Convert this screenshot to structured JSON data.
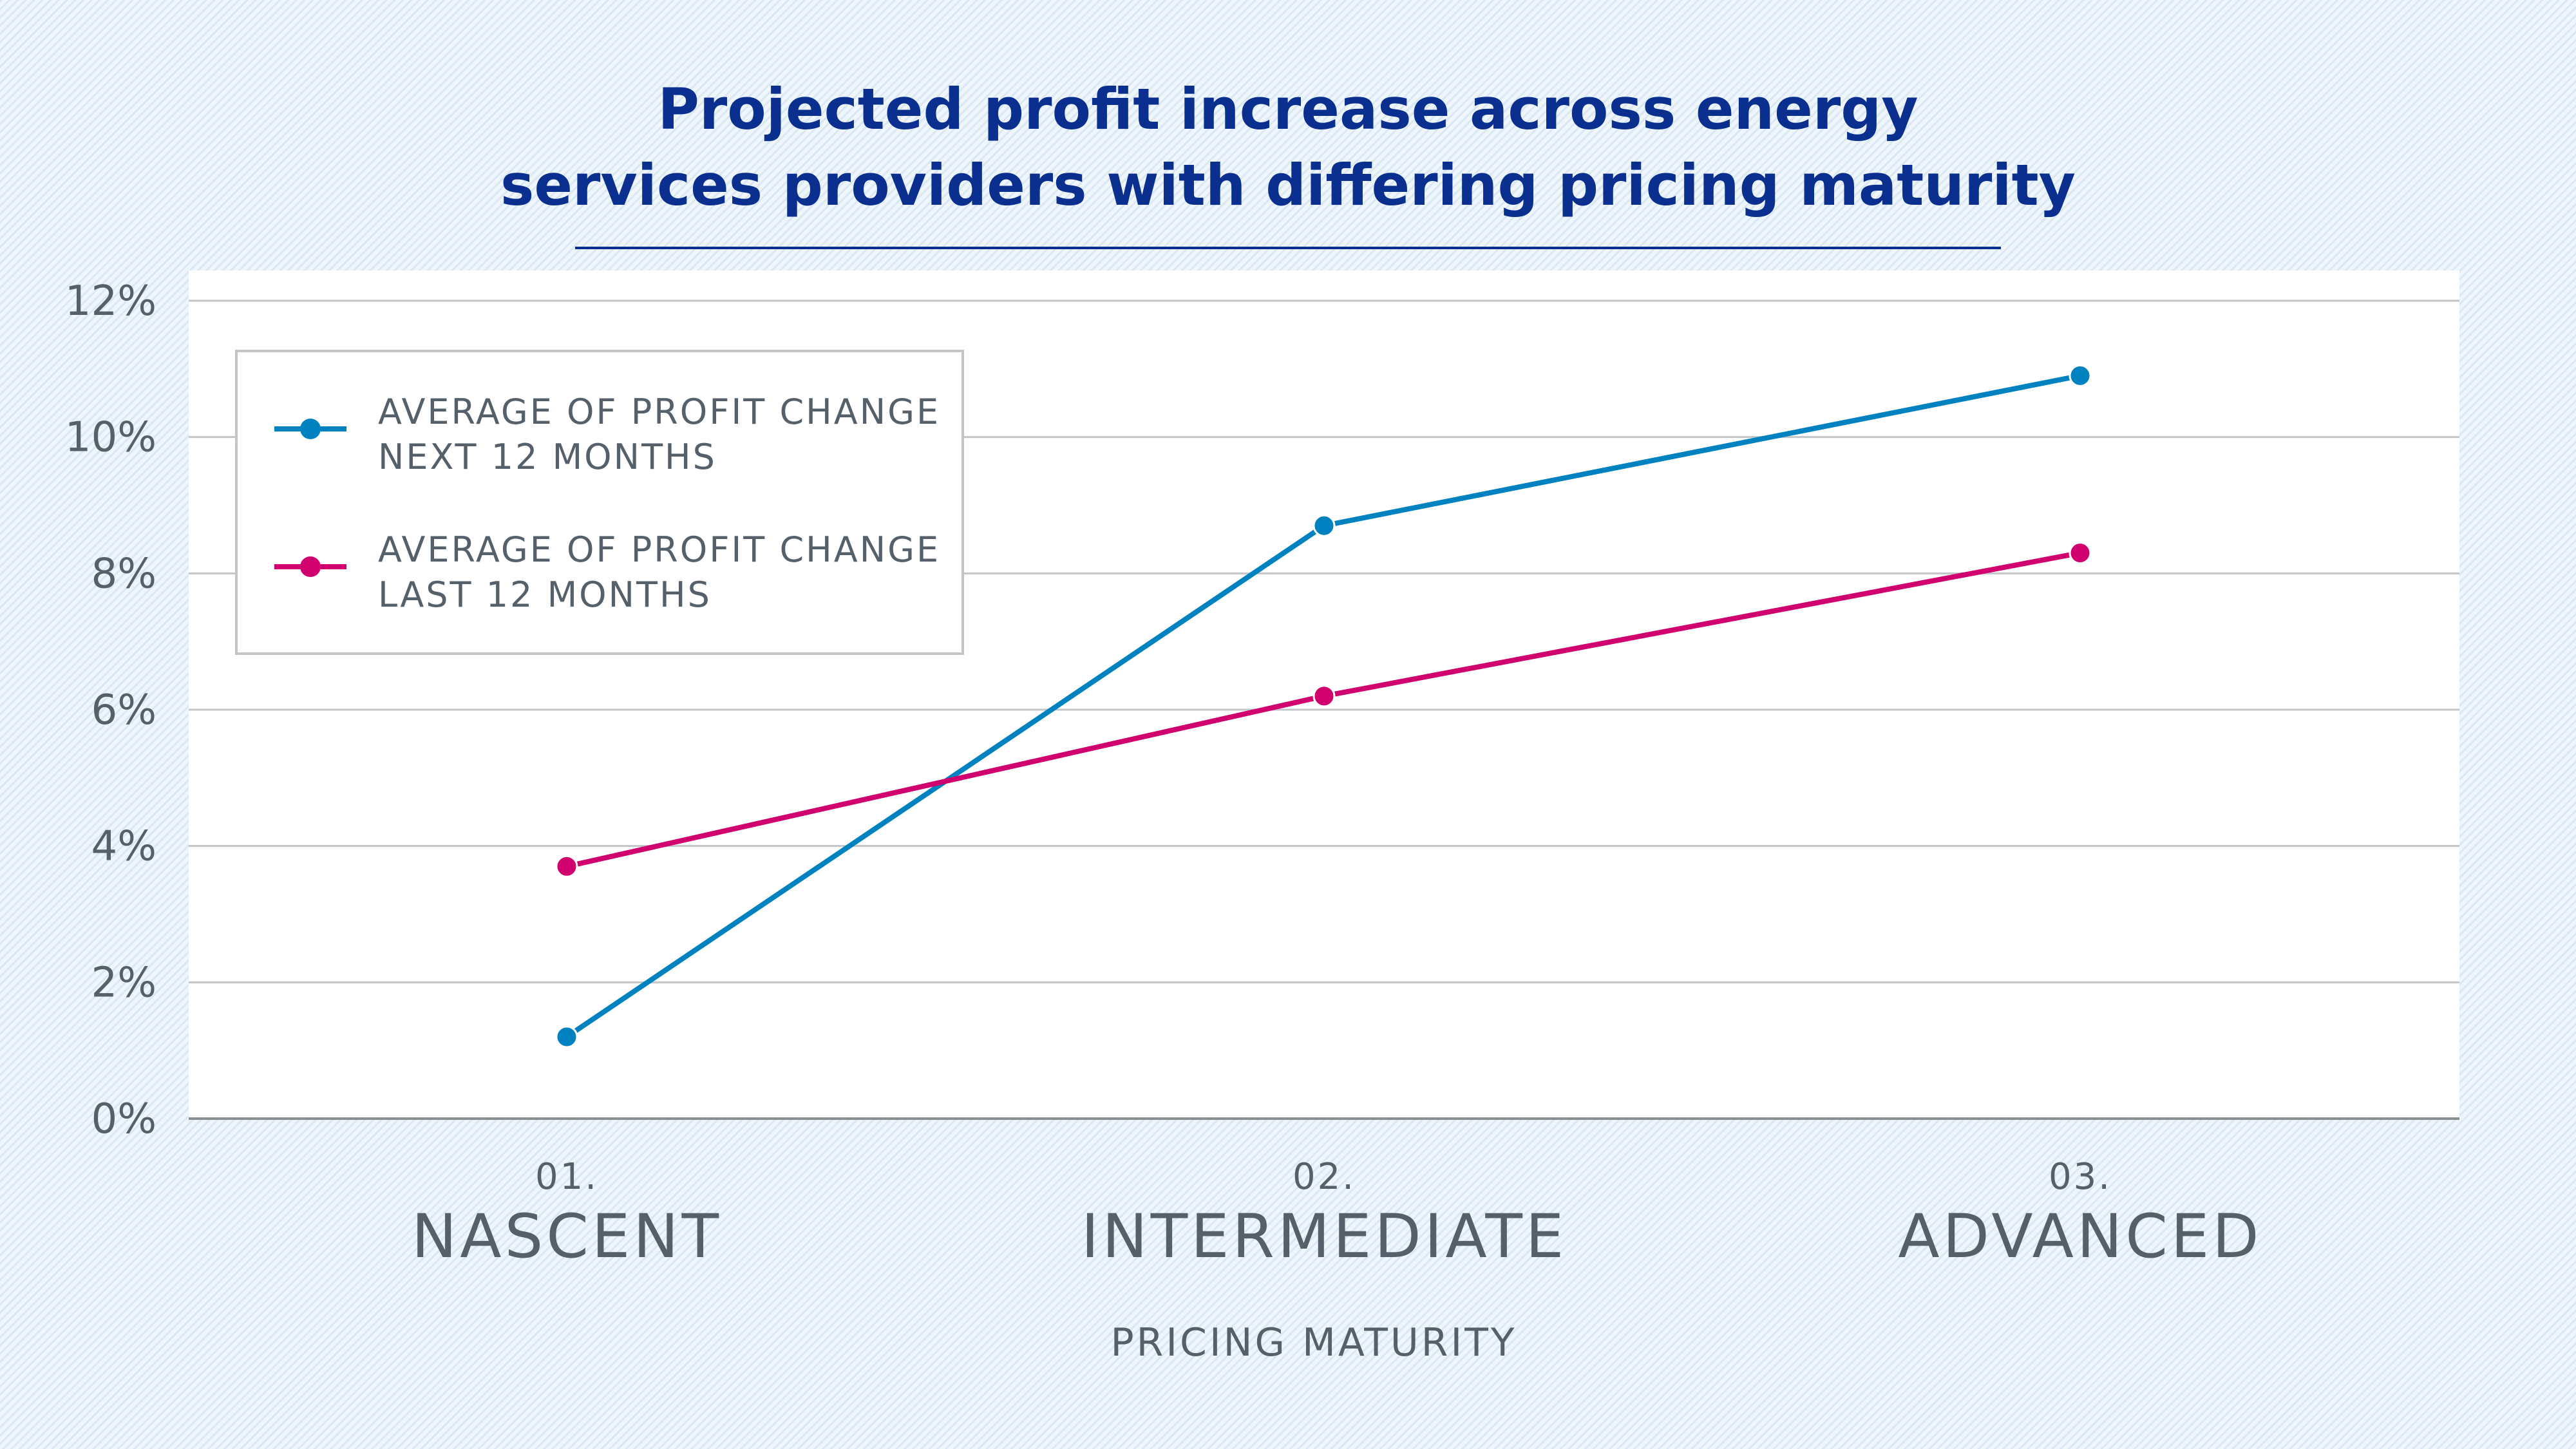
{
  "chart_data": {
    "type": "line",
    "title": [
      "Projected profit increase across energy",
      "services providers with differing pricing maturity"
    ],
    "xlabel": "PRICING MATURITY",
    "ylabel": "",
    "categories": [
      {
        "number": "01.",
        "name": "NASCENT"
      },
      {
        "number": "02.",
        "name": "INTERMEDIATE"
      },
      {
        "number": "03.",
        "name": "ADVANCED"
      }
    ],
    "ylim": [
      0,
      12
    ],
    "yticks": [
      0,
      2,
      4,
      6,
      8,
      10,
      12
    ],
    "ytick_labels": [
      "0%",
      "2%",
      "4%",
      "6%",
      "8%",
      "10%",
      "12%"
    ],
    "grid": "horizontal",
    "legend_position": "top-left",
    "series": [
      {
        "name": [
          "AVERAGE OF PROFIT CHANGE",
          "NEXT 12 MONTHS"
        ],
        "color": "#0082c0",
        "values": [
          1.2,
          8.7,
          10.9
        ]
      },
      {
        "name": [
          "AVERAGE OF PROFIT CHANGE",
          "LAST 12 MONTHS"
        ],
        "color": "#d0006f",
        "values": [
          3.7,
          6.2,
          8.3
        ]
      }
    ]
  }
}
